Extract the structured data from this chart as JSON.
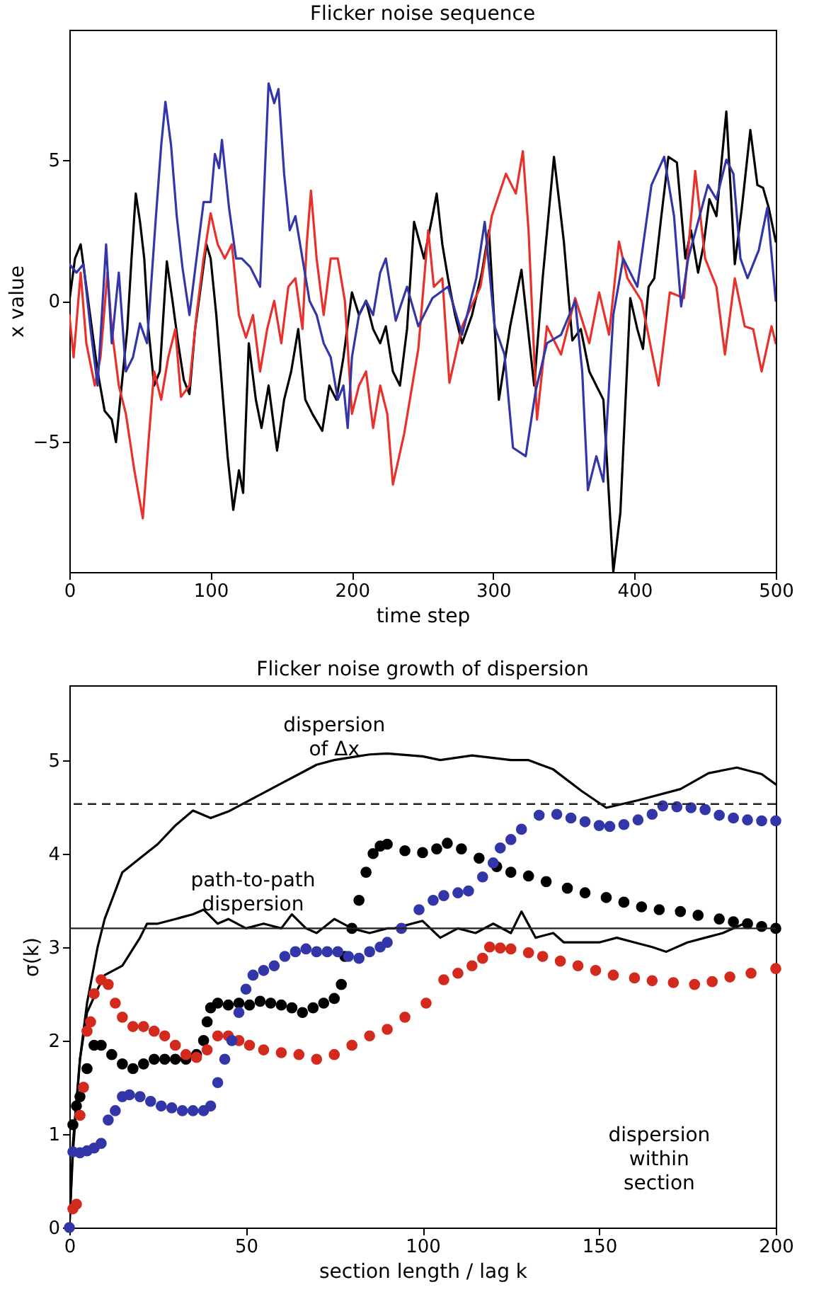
{
  "chart_data": [
    {
      "type": "line",
      "title": "Flicker noise sequence",
      "xlabel": "time step",
      "ylabel": "x value",
      "xlim": [
        0,
        500
      ],
      "ylim": [
        -9.6,
        9.6
      ],
      "xticks": [
        0,
        100,
        200,
        300,
        400,
        500
      ],
      "yticks": [
        -5,
        0,
        5
      ],
      "series": [
        {
          "color": "#000000",
          "x": [
            0,
            4,
            8,
            12,
            16,
            20,
            25,
            30,
            33,
            37,
            41,
            44,
            47,
            50,
            53,
            56,
            60,
            64,
            69,
            73,
            77,
            81,
            85,
            89,
            93,
            97,
            100,
            104,
            108,
            112,
            116,
            120,
            123,
            127,
            132,
            136,
            141,
            147,
            152,
            157,
            162,
            167,
            172,
            179,
            184,
            189,
            194,
            200,
            205,
            210,
            215,
            220,
            224,
            229,
            234,
            239,
            244,
            251,
            257,
            260,
            264,
            268,
            273,
            278,
            285,
            292,
            297,
            304,
            312,
            320,
            329,
            335,
            343,
            350,
            356,
            362,
            368,
            373,
            378,
            385,
            390,
            397,
            402,
            406,
            410,
            414,
            419,
            424,
            430,
            436,
            440,
            445,
            449,
            453,
            458,
            465,
            471,
            476,
            482,
            487,
            491,
            495,
            500
          ],
          "values": [
            0,
            1.5,
            2,
            0.5,
            -1,
            -2.5,
            -3.9,
            -4.2,
            -5,
            -3,
            -1,
            1.5,
            3.8,
            2.8,
            1.5,
            -1,
            -3,
            -2.5,
            1.4,
            0,
            -1.5,
            -2.8,
            -3.3,
            -1,
            0.5,
            2,
            1.5,
            -0.5,
            -3,
            -5.5,
            -7.4,
            -6,
            -6.8,
            -1.5,
            -3.5,
            -4.5,
            -3,
            -5.3,
            -3.5,
            -2.5,
            -1,
            -3.5,
            -4,
            -4.6,
            -3,
            -3.5,
            -2,
            0.3,
            -0.5,
            0,
            -1,
            -1.5,
            -0.9,
            -2.5,
            -3,
            -1,
            2.8,
            1.5,
            3,
            3.8,
            2,
            0.8,
            -0.5,
            -1.5,
            -0.5,
            1,
            2.5,
            -3.5,
            -0.9,
            1.1,
            -3,
            0.8,
            5.1,
            2.1,
            -1.4,
            -1,
            -2.5,
            -3,
            -3.5,
            -9.6,
            -7.5,
            0.1,
            -1,
            -1.7,
            0.5,
            0.8,
            3,
            5.1,
            4.9,
            1.5,
            2.5,
            1,
            2,
            3.6,
            3,
            6.7,
            1.3,
            3.3,
            6.05,
            4.1,
            4,
            3.3,
            2.1
          ]
        },
        {
          "color": "#e8312a",
          "x": [
            0,
            3,
            8,
            12,
            18,
            22,
            27,
            30,
            35,
            40,
            46,
            52,
            56,
            60,
            65,
            70,
            75,
            79,
            85,
            90,
            95,
            100,
            105,
            110,
            115,
            120,
            125,
            130,
            135,
            140,
            145,
            150,
            155,
            160,
            165,
            168,
            171,
            175,
            180,
            185,
            190,
            195,
            200,
            205,
            210,
            215,
            220,
            225,
            229,
            237,
            247,
            254,
            258,
            264,
            269,
            278,
            291,
            299,
            309,
            316,
            321,
            325,
            331,
            338,
            348,
            358,
            368,
            375,
            382,
            389,
            395,
            405,
            417,
            425,
            435,
            443,
            450,
            458,
            464,
            471,
            478,
            484,
            490,
            497,
            500
          ],
          "values": [
            -0.5,
            -2,
            1,
            -1.5,
            -3,
            -2,
            1,
            -1,
            -3,
            -4,
            -6,
            -7.7,
            -5,
            -2.5,
            -3.5,
            -2,
            -1,
            -3.4,
            -3,
            -0.5,
            1.5,
            3.1,
            2,
            1.5,
            2,
            -0.5,
            -1.3,
            -0.5,
            -2.5,
            -1,
            0,
            -1.5,
            0.5,
            0.8,
            -1,
            2,
            3.9,
            1.5,
            -0.5,
            1.5,
            1.5,
            0,
            -4,
            -3,
            -2.5,
            -4.5,
            -3,
            -4,
            -6.5,
            -4.7,
            -1.7,
            2.5,
            0.5,
            0.8,
            -2.9,
            -0.9,
            0.5,
            3,
            4.5,
            3.8,
            5.3,
            2.5,
            -4.2,
            -0.9,
            -1.9,
            0.1,
            -1.5,
            0.3,
            -1.2,
            2.1,
            0.8,
            0,
            -3,
            0.3,
            0.1,
            4.6,
            1.5,
            0.5,
            -1.9,
            0.8,
            -0.9,
            -1,
            -2.5,
            -0.9,
            -1.5
          ]
        },
        {
          "color": "#3236a8",
          "x": [
            0,
            5,
            10,
            15,
            20,
            26,
            30,
            35,
            40,
            45,
            50,
            55,
            61,
            65,
            68,
            72,
            76,
            80,
            85,
            90,
            95,
            100,
            103,
            106,
            108,
            113,
            118,
            122,
            128,
            135,
            141,
            145,
            148,
            152,
            156,
            160,
            165,
            170,
            175,
            180,
            185,
            190,
            194,
            197,
            200,
            205,
            210,
            215,
            220,
            224,
            231,
            239,
            247,
            257,
            268,
            278,
            288,
            294,
            301,
            308,
            314,
            323,
            330,
            338,
            348,
            358,
            363,
            367,
            373,
            378,
            385,
            392,
            402,
            412,
            421,
            428,
            433,
            438,
            445,
            452,
            458,
            465,
            470,
            475,
            480,
            488,
            494,
            500
          ],
          "values": [
            1.3,
            1,
            1.3,
            -1,
            -3,
            2,
            -1.5,
            1,
            -2.5,
            -2,
            -0.8,
            -1.5,
            2.8,
            5.5,
            7.05,
            5.5,
            3,
            1.2,
            -0.5,
            1.5,
            3.5,
            3.5,
            5.2,
            4.7,
            5.7,
            3.3,
            1.5,
            1.5,
            1.2,
            0.5,
            7.7,
            7,
            7.5,
            4.5,
            2.5,
            3,
            1.5,
            0,
            -0.5,
            -1.5,
            -2,
            -3.5,
            -3,
            -4.5,
            -2,
            -0.5,
            0,
            -0.5,
            1,
            1.5,
            -0.7,
            0.5,
            -0.9,
            0.1,
            0.5,
            -1.2,
            0.8,
            2.8,
            -0.9,
            -1.9,
            -5.2,
            -5.5,
            -3.2,
            -1.5,
            -1.2,
            0,
            -2.5,
            -6.7,
            -5.5,
            -6.4,
            -0.5,
            1.5,
            0.5,
            4.1,
            5.1,
            3,
            -0.2,
            1.5,
            2.8,
            4.1,
            3.6,
            5,
            4.5,
            1.5,
            0.8,
            1.8,
            3.3,
            0
          ]
        }
      ]
    },
    {
      "type": "scatter",
      "title": "Flicker noise growth of dispersion",
      "xlabel": "section length / lag k",
      "ylabel": "σ(k)",
      "xlim": [
        0,
        200
      ],
      "ylim": [
        0,
        5.8
      ],
      "xticks": [
        0,
        50,
        100,
        150,
        200
      ],
      "yticks": [
        0,
        1,
        2,
        3,
        4,
        5
      ],
      "series": [
        {
          "type": "line",
          "color": "#000000",
          "x": [
            0,
            1,
            3,
            5,
            8,
            10,
            15,
            20,
            25,
            30,
            35,
            40,
            45,
            50,
            55,
            60,
            65,
            70,
            75,
            80,
            85,
            90,
            100,
            105,
            114,
            125,
            130,
            137,
            145,
            152,
            161,
            173,
            181,
            189,
            196,
            200
          ],
          "values": [
            0,
            0.8,
            1.8,
            2.4,
            3.0,
            3.3,
            3.8,
            3.95,
            4.1,
            4.3,
            4.46,
            4.38,
            4.45,
            4.55,
            4.65,
            4.75,
            4.85,
            4.95,
            5.0,
            5.03,
            5.06,
            5.07,
            5.04,
            5.0,
            5.05,
            5.0,
            5.0,
            4.9,
            4.67,
            4.49,
            4.57,
            4.69,
            4.86,
            4.92,
            4.85,
            4.74
          ]
        },
        {
          "type": "line",
          "color": "#000000",
          "x": [
            0,
            1,
            3,
            5,
            8,
            10,
            15,
            20,
            22,
            25,
            30,
            35,
            38,
            42,
            45,
            50,
            55,
            60,
            63,
            67,
            70,
            75,
            80,
            85,
            90,
            92,
            100,
            105,
            110,
            115,
            120,
            125,
            128,
            132,
            137,
            140,
            145,
            150,
            155,
            160,
            165,
            169,
            175,
            180,
            185,
            191
          ],
          "values": [
            0,
            0.9,
            1.8,
            2.3,
            2.55,
            2.7,
            2.8,
            3.1,
            3.25,
            3.25,
            3.3,
            3.35,
            3.4,
            3.25,
            3.3,
            3.2,
            3.25,
            3.2,
            3.35,
            3.2,
            3.15,
            3.3,
            3.2,
            3.15,
            3.2,
            3.2,
            3.28,
            3.1,
            3.2,
            3.15,
            3.25,
            3.15,
            3.38,
            3.1,
            3.15,
            3.05,
            3.05,
            3.05,
            3.1,
            3.05,
            3.0,
            2.95,
            3.05,
            3.1,
            3.15,
            3.25
          ]
        },
        {
          "marker": "circle",
          "color": "#000000",
          "x": [
            1,
            2,
            3,
            5,
            7,
            9,
            12,
            15,
            18,
            21,
            24,
            27,
            30,
            33,
            36,
            38,
            39,
            40,
            42,
            45,
            48,
            51,
            54,
            57,
            60,
            63,
            66,
            69,
            72,
            75,
            77,
            78,
            80,
            82,
            84,
            86,
            88,
            90,
            95,
            100,
            104,
            107,
            111,
            116,
            121,
            125,
            130,
            135,
            141,
            146,
            152,
            157,
            162,
            167,
            173,
            178,
            184,
            188,
            192,
            196,
            200
          ],
          "values": [
            1.1,
            1.3,
            1.4,
            1.7,
            1.95,
            1.95,
            1.85,
            1.75,
            1.7,
            1.75,
            1.8,
            1.8,
            1.8,
            1.8,
            1.85,
            2.0,
            2.2,
            2.35,
            2.4,
            2.38,
            2.4,
            2.38,
            2.42,
            2.4,
            2.38,
            2.35,
            2.3,
            2.35,
            2.4,
            2.45,
            2.6,
            2.9,
            3.2,
            3.5,
            3.8,
            4.0,
            4.08,
            4.1,
            4.03,
            4.01,
            4.05,
            4.11,
            4.05,
            3.95,
            3.86,
            3.8,
            3.76,
            3.7,
            3.63,
            3.58,
            3.53,
            3.48,
            3.43,
            3.4,
            3.38,
            3.34,
            3.3,
            3.27,
            3.25,
            3.22,
            3.2
          ]
        },
        {
          "marker": "circle",
          "color": "#d42a1e",
          "x": [
            1,
            2,
            3,
            4,
            5,
            6,
            7,
            9,
            11,
            13,
            15,
            18,
            21,
            24,
            27,
            30,
            33,
            36,
            39,
            42,
            45,
            48,
            51,
            55,
            60,
            65,
            70,
            75,
            80,
            85,
            90,
            95,
            101,
            106,
            110,
            114,
            117,
            119,
            122,
            125,
            130,
            134,
            139,
            144,
            149,
            154,
            160,
            165,
            171,
            177,
            182,
            187,
            193,
            200
          ],
          "values": [
            0.2,
            0.25,
            1.2,
            1.5,
            2.1,
            2.2,
            2.5,
            2.65,
            2.6,
            2.4,
            2.25,
            2.15,
            2.15,
            2.1,
            2.05,
            1.95,
            1.85,
            1.82,
            1.9,
            2.05,
            2.05,
            2.0,
            1.95,
            1.9,
            1.87,
            1.85,
            1.8,
            1.85,
            1.95,
            2.05,
            2.12,
            2.25,
            2.4,
            2.65,
            2.72,
            2.8,
            2.88,
            3.0,
            2.99,
            2.98,
            2.94,
            2.9,
            2.85,
            2.8,
            2.75,
            2.7,
            2.67,
            2.64,
            2.62,
            2.6,
            2.63,
            2.68,
            2.72,
            2.77
          ]
        },
        {
          "marker": "circle",
          "color": "#3236a8",
          "x": [
            0,
            1,
            3,
            5,
            7,
            9,
            11,
            13,
            15,
            17,
            20,
            23,
            26,
            29,
            32,
            35,
            38,
            40,
            42,
            44,
            46,
            48,
            50,
            52,
            55,
            58,
            61,
            64,
            67,
            70,
            73,
            76,
            79,
            82,
            85,
            88,
            90,
            94,
            99,
            103,
            106,
            110,
            113,
            117,
            120,
            122,
            125,
            128,
            133,
            138,
            142,
            146,
            150,
            153,
            157,
            161,
            165,
            168,
            172,
            176,
            180,
            184,
            188,
            192,
            196,
            200
          ],
          "values": [
            0,
            0.81,
            0.8,
            0.82,
            0.85,
            0.9,
            1.15,
            1.25,
            1.4,
            1.42,
            1.4,
            1.35,
            1.3,
            1.28,
            1.25,
            1.25,
            1.25,
            1.3,
            1.55,
            1.8,
            2.0,
            2.3,
            2.55,
            2.7,
            2.75,
            2.8,
            2.9,
            2.95,
            2.98,
            2.95,
            2.95,
            2.95,
            2.9,
            2.88,
            2.95,
            3.0,
            3.05,
            3.2,
            3.4,
            3.5,
            3.55,
            3.58,
            3.6,
            3.75,
            3.9,
            4.06,
            4.15,
            4.26,
            4.41,
            4.42,
            4.38,
            4.34,
            4.3,
            4.29,
            4.31,
            4.36,
            4.42,
            4.51,
            4.5,
            4.49,
            4.47,
            4.41,
            4.38,
            4.36,
            4.35,
            4.35
          ]
        }
      ],
      "ref_lines": [
        {
          "axis": "y",
          "value": 4.53,
          "line_style": "dashed"
        },
        {
          "axis": "y",
          "value": 3.2,
          "line_style": "solid"
        }
      ],
      "annotations": [
        "dispersion\nof Δx",
        "path-to-path\ndispersion",
        "dispersion\nwithin\nsection"
      ]
    }
  ]
}
